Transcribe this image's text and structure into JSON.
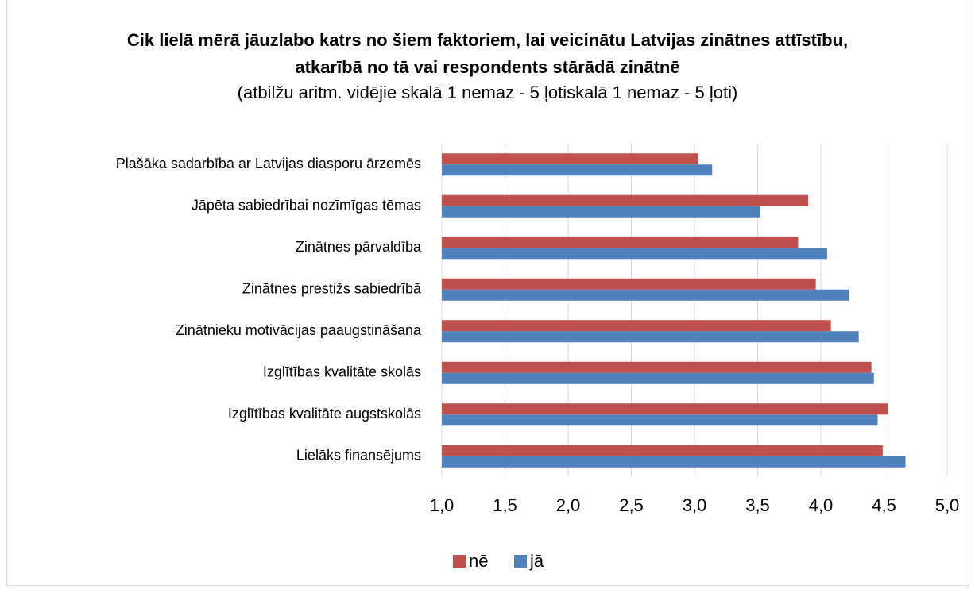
{
  "chart_data": {
    "type": "hbar",
    "title": "Cik lielā mērā jāuzlabo katrs no šiem faktoriem, lai veicinātu Latvijas zinātnes attīstību, atkarībā no tā vai respondents stārādā zinātnē",
    "subtitle": "(atbilžu aritm. vidējie skalā 1 nemaz - 5 ļotiskalā 1 nemaz - 5 ļoti)",
    "categories": [
      "Plašāka sadarbība ar Latvijas diasporu ārzemēs",
      "Jāpēta sabiedrībai nozīmīgas tēmas",
      "Zinātnes pārvaldība",
      "Zinātnes prestižs sabiedrībā",
      "Zinātnieku motivācijas paaugstināšana",
      "Izglītības kvalitāte skolās",
      "Izglītības kvalitāte augstskolās",
      "Lielāks finansējums"
    ],
    "series": [
      {
        "name": "nē",
        "color": "#c0504d",
        "values": [
          3.03,
          3.9,
          3.82,
          3.96,
          4.08,
          4.4,
          4.53,
          4.49
        ]
      },
      {
        "name": "jā",
        "color": "#4f81bd",
        "values": [
          3.14,
          3.52,
          4.05,
          4.22,
          4.3,
          4.42,
          4.45,
          4.67
        ]
      }
    ],
    "xlim": [
      1,
      5
    ],
    "xticks": [
      {
        "value": 1,
        "label": "1,0"
      },
      {
        "value": 1.5,
        "label": "1,5"
      },
      {
        "value": 2,
        "label": "2,0"
      },
      {
        "value": 2.5,
        "label": "2,5"
      },
      {
        "value": 3,
        "label": "3,0"
      },
      {
        "value": 3.5,
        "label": "3,5"
      },
      {
        "value": 4,
        "label": "4,0"
      },
      {
        "value": 4.5,
        "label": "4,5"
      },
      {
        "value": 5,
        "label": "5,0"
      }
    ],
    "grid": true,
    "legend": "bottom"
  }
}
